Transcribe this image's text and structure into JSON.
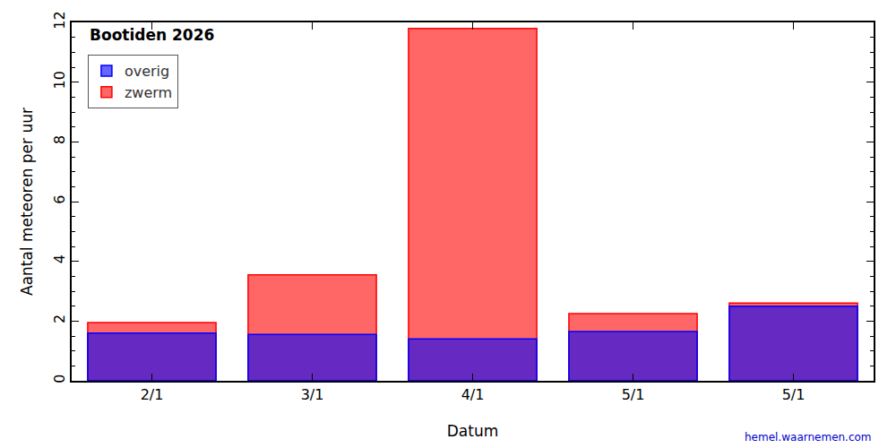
{
  "chart_data": {
    "type": "bar",
    "title": "Bootiden 2026",
    "x_label": "Datum",
    "y_label": "Aantal meteoren per uur",
    "categories": [
      "2/1",
      "3/1",
      "4/1",
      "5/1",
      "5/1"
    ],
    "series": [
      {
        "name": "overig",
        "color": "#0000ff",
        "values": [
          1.6,
          1.55,
          1.4,
          1.65,
          2.5
        ]
      },
      {
        "name": "zwerm",
        "color": "#ff0000",
        "values": [
          0.35,
          2.0,
          10.4,
          0.6,
          0.1
        ]
      }
    ],
    "stacked": true,
    "legend": "upper left",
    "grid": false,
    "ylim": [
      0,
      12
    ],
    "yticks": [
      0,
      2,
      4,
      6,
      8,
      10,
      12
    ],
    "annotations": [
      {
        "text": "hemel.waarnemen.com"
      }
    ]
  }
}
